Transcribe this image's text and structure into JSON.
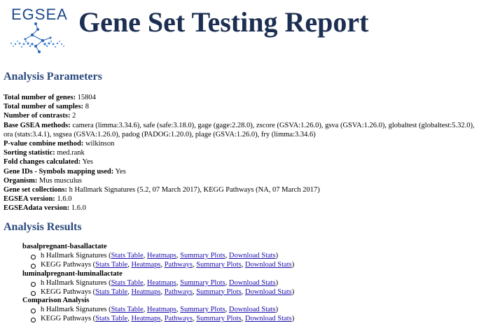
{
  "logo": {
    "text": "EGSEA"
  },
  "title": "Gene Set Testing Report",
  "params": {
    "heading": "Analysis Parameters",
    "rows": [
      {
        "label": "Total number of genes:",
        "value": "15804"
      },
      {
        "label": "Total number of samples:",
        "value": "8"
      },
      {
        "label": "Number of contrasts:",
        "value": "2"
      },
      {
        "label": "Base GSEA methods:",
        "value": "camera (limma:3.34.6), safe (safe:3.18.0), gage (gage:2.28.0), zscore (GSVA:1.26.0), gsva (GSVA:1.26.0), globaltest (globaltest:5.32.0), ora (stats:3.4.1), ssgsea (GSVA:1.26.0), padog (PADOG:1.20.0), plage (GSVA:1.26.0), fry (limma:3.34.6)"
      },
      {
        "label": "P-value combine method:",
        "value": "wilkinson"
      },
      {
        "label": "Sorting statistic:",
        "value": "med.rank"
      },
      {
        "label": "Fold changes calculated:",
        "value": "Yes"
      },
      {
        "label": "Gene IDs - Symbols mapping used:",
        "value": "Yes"
      },
      {
        "label": "Organism:",
        "value": "Mus musculus"
      },
      {
        "label": "Gene set collections:",
        "value": "h Hallmark Signatures (5.2, 07 March 2017), KEGG Pathways (NA, 07 March 2017)"
      },
      {
        "label": "EGSEA version:",
        "value": "1.6.0"
      },
      {
        "label": "EGSEAdata version:",
        "value": "1.6.0"
      }
    ]
  },
  "results": {
    "heading": "Analysis Results",
    "groups": [
      {
        "label": "basalpregnant-basallactate",
        "collections": [
          {
            "name": "h Hallmark Signatures",
            "links": [
              "Stats Table",
              "Heatmaps",
              "Summary Plots",
              "Download Stats"
            ]
          },
          {
            "name": "KEGG Pathways",
            "links": [
              "Stats Table",
              "Heatmaps",
              "Pathways",
              "Summary Plots",
              "Download Stats"
            ]
          }
        ]
      },
      {
        "label": "luminalpregnant-luminallactate",
        "collections": [
          {
            "name": "h Hallmark Signatures",
            "links": [
              "Stats Table",
              "Heatmaps",
              "Summary Plots",
              "Download Stats"
            ]
          },
          {
            "name": "KEGG Pathways",
            "links": [
              "Stats Table",
              "Heatmaps",
              "Pathways",
              "Summary Plots",
              "Download Stats"
            ]
          }
        ]
      },
      {
        "label": "Comparison Analysis",
        "collections": [
          {
            "name": "h Hallmark Signatures",
            "links": [
              "Stats Table",
              "Heatmaps",
              "Summary Plots",
              "Download Stats"
            ]
          },
          {
            "name": "KEGG Pathways",
            "links": [
              "Stats Table",
              "Heatmaps",
              "Pathways",
              "Summary Plots",
              "Download Stats"
            ]
          }
        ]
      }
    ]
  },
  "colors": {
    "title": "#1c2f52",
    "section": "#2b4a7e",
    "link": "#1a0dab",
    "logo": "#1e4a8a"
  }
}
